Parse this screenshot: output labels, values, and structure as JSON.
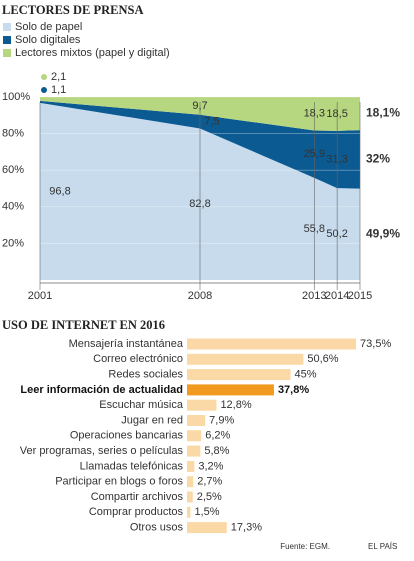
{
  "chart_data": [
    {
      "type": "stacked-area",
      "title": "LECTORES DE PRENSA",
      "x": [
        2001,
        2008,
        2013,
        2014,
        2015
      ],
      "xlim": [
        2001,
        2015
      ],
      "xticks": [
        2001,
        2008,
        2013,
        2014,
        2015
      ],
      "ylim": [
        0,
        100
      ],
      "yticks": [
        {
          "value": 20,
          "label": "20%"
        },
        {
          "value": 40,
          "label": "40%"
        },
        {
          "value": 60,
          "label": "60%"
        },
        {
          "value": 80,
          "label": "80%"
        },
        {
          "value": 100,
          "label": "100%"
        }
      ],
      "grid": true,
      "series": [
        {
          "name": "Solo de papel",
          "color": "#c7dbec",
          "values": [
            96.8,
            82.8,
            55.8,
            50.2,
            49.9
          ],
          "value_labels": [
            "96,8",
            "82,8",
            "55,8",
            "50,2",
            "49,9%"
          ]
        },
        {
          "name": "Solo digitales",
          "color": "#0b5a92",
          "values": [
            1.1,
            7.5,
            25.9,
            31.3,
            32
          ],
          "value_labels": [
            "1,1",
            "7,5",
            "25,9",
            "31,3",
            "32%"
          ]
        },
        {
          "name": "Lectores mixtos (papel y digital)",
          "color": "#b6d67f",
          "values": [
            2.1,
            9.7,
            18.3,
            18.5,
            18.1
          ],
          "value_labels": [
            "2,1",
            "9,7",
            "18,3",
            "18,5",
            "18,1%"
          ]
        }
      ]
    },
    {
      "type": "hbar",
      "title": "USO DE INTERNET EN 2016",
      "categories": [
        "Mensajería instantánea",
        "Correo electrónico",
        "Redes sociales",
        "Leer información de actualidad",
        "Escuchar música",
        "Jugar en red",
        "Operaciones bancarias",
        "Ver programas, series o películas",
        "Llamadas telefónicas",
        "Participar en blogs o foros",
        "Compartir archivos",
        "Comprar productos",
        "Otros usos"
      ],
      "values": [
        73.5,
        50.6,
        45,
        37.8,
        12.8,
        7.9,
        6.2,
        5.8,
        3.2,
        2.7,
        2.5,
        1.5,
        17.3
      ],
      "value_labels": [
        "73,5%",
        "50,6%",
        "45%",
        "37,8%",
        "12,8%",
        "7,9%",
        "6,2%",
        "5,8%",
        "3,2%",
        "2,7%",
        "2,5%",
        "1,5%",
        "17,3%"
      ],
      "color": "#fbd9a6",
      "highlight": 3,
      "highlight_color": "#f19a1f"
    }
  ],
  "footer": {
    "source": "Fuente: EGM.",
    "brand": "EL PAÍS"
  }
}
